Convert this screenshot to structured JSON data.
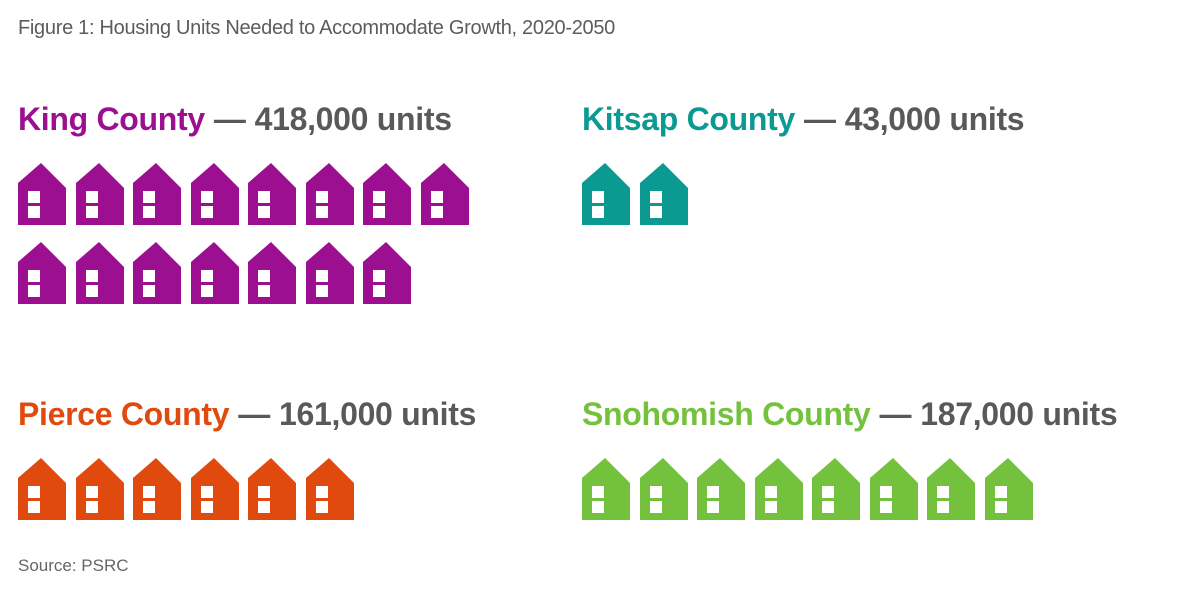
{
  "figure": {
    "title": "Figure 1: Housing Units Needed to Accommodate Growth, 2020-2050",
    "separator": "—",
    "source": "Source: PSRC",
    "text_color": "#58595b",
    "counties": [
      {
        "name": "King County",
        "units": "418,000 units",
        "value": 418000,
        "color": "#9b0f90",
        "house_count": 15
      },
      {
        "name": "Kitsap County",
        "units": "43,000 units",
        "value": 43000,
        "color": "#0a9a92",
        "house_count": 2
      },
      {
        "name": "Pierce County",
        "units": "161,000 units",
        "value": 161000,
        "color": "#e14a0e",
        "house_count": 6
      },
      {
        "name": "Snohomish County",
        "units": "187,000 units",
        "value": 187000,
        "color": "#73c13c",
        "house_count": 8
      }
    ]
  },
  "chart_data": {
    "type": "bar",
    "subtype": "pictogram",
    "title": "Figure 1: Housing Units Needed to Accommodate Growth, 2020-2050",
    "categories": [
      "King County",
      "Kitsap County",
      "Pierce County",
      "Snohomish County"
    ],
    "values": [
      418000,
      43000,
      161000,
      187000
    ],
    "value_labels": [
      "418,000 units",
      "43,000 units",
      "161,000 units",
      "187,000 units"
    ],
    "unit": "housing units",
    "icon": "house",
    "icon_counts": [
      15,
      2,
      6,
      8
    ],
    "icon_layout_rows": [
      [
        8,
        7
      ],
      [
        2
      ],
      [
        6
      ],
      [
        8
      ]
    ],
    "colors": [
      "#9b0f90",
      "#0a9a92",
      "#e14a0e",
      "#73c13c"
    ],
    "label_color": "#58595b",
    "source": "Source: PSRC",
    "legend": false,
    "grid": false,
    "axes": false
  }
}
